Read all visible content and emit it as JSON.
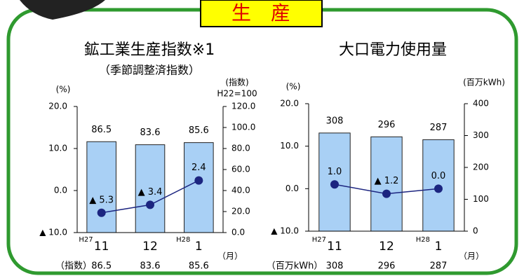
{
  "header": {
    "title": "生　産"
  },
  "chart_data": [
    {
      "type": "combo",
      "title": "鉱工業生産指数※1",
      "subtitle": "（季節調整済指数）",
      "ylabel": "(%)",
      "y2label": "(指数)",
      "y2note": "H22=100",
      "categories": [
        "11",
        "12",
        "1"
      ],
      "x_prefixes": [
        "H27",
        null,
        "H28"
      ],
      "xlabel": "（月）",
      "table_label": "（指数）",
      "ylim": [
        -10,
        20
      ],
      "yticks": [
        {
          "value": -10,
          "label": "▲ 10.0"
        },
        {
          "value": 0,
          "label": "0.0"
        },
        {
          "value": 10,
          "label": "10.0"
        },
        {
          "value": 20,
          "label": "20.0"
        }
      ],
      "y2lim": [
        0,
        120
      ],
      "y2ticks": [
        {
          "value": 0,
          "label": "0.0"
        },
        {
          "value": 20,
          "label": "20.0"
        },
        {
          "value": 40,
          "label": "40.0"
        },
        {
          "value": 60,
          "label": "60.0"
        },
        {
          "value": 80,
          "label": "80.0"
        },
        {
          "value": 100,
          "label": "100.0"
        },
        {
          "value": 120,
          "label": "120.0"
        }
      ],
      "series": [
        {
          "type": "bar",
          "axis": "y2",
          "color": "#a9d0f5",
          "values": [
            86.5,
            83.6,
            85.6
          ]
        },
        {
          "type": "line",
          "color": "#1c2580",
          "values": [
            -5.3,
            -3.4,
            2.4
          ],
          "value_labels": [
            "▲ 5.3",
            "▲ 3.4",
            "2.4"
          ]
        }
      ]
    },
    {
      "type": "combo",
      "title": "大口電力使用量",
      "ylabel": "(%)",
      "y2label": "(百万kWh)",
      "categories": [
        "11",
        "12",
        "1"
      ],
      "x_prefixes": [
        "H27",
        null,
        "H28"
      ],
      "xlabel": "（月）",
      "table_label": "（百万kWh）",
      "ylim": [
        -10,
        20
      ],
      "yticks": [
        {
          "value": -10,
          "label": "▲ 10.0"
        },
        {
          "value": 0,
          "label": "0.0"
        },
        {
          "value": 10,
          "label": "10.0"
        },
        {
          "value": 20,
          "label": "20.0"
        }
      ],
      "y2lim": [
        0,
        400
      ],
      "y2ticks": [
        0,
        100,
        200,
        300,
        400
      ],
      "series": [
        {
          "type": "bar",
          "axis": "y2",
          "color": "#a9d0f5",
          "values": [
            308,
            296,
            287
          ]
        },
        {
          "type": "line",
          "color": "#1c2580",
          "values": [
            1.0,
            -1.2,
            0.0
          ],
          "value_labels": [
            "1.0",
            "▲ 1.2",
            "0.0"
          ]
        }
      ]
    }
  ]
}
